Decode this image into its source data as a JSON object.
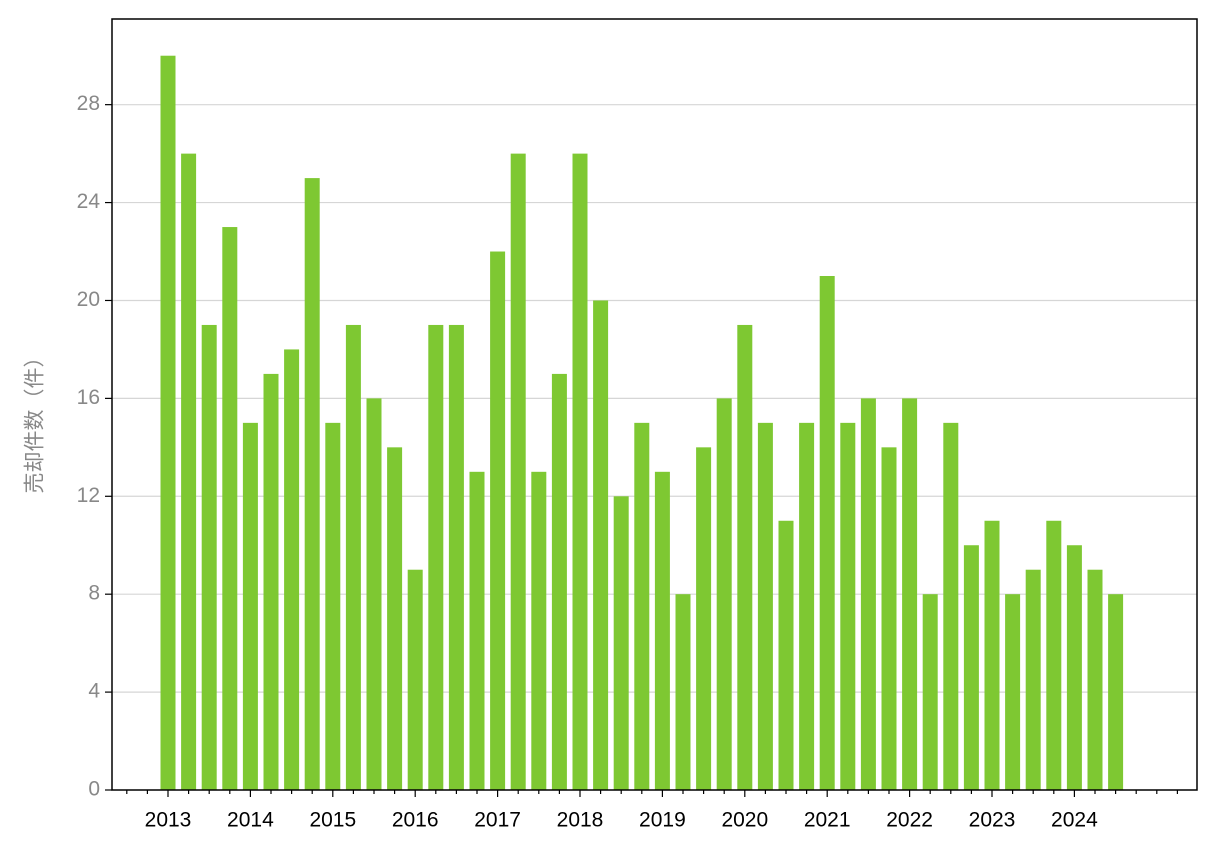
{
  "chart_data": {
    "type": "bar",
    "y_label": "売却件数（件）",
    "categories": [
      "2013",
      null,
      null,
      null,
      "2014",
      null,
      null,
      null,
      "2015",
      null,
      null,
      null,
      "2016",
      null,
      null,
      null,
      "2017",
      null,
      null,
      null,
      "2018",
      null,
      null,
      null,
      "2019",
      null,
      null,
      null,
      "2020",
      null,
      null,
      null,
      "2021",
      null,
      null,
      null,
      "2022",
      null,
      null,
      null,
      "2023",
      null,
      null,
      null,
      "2024",
      null,
      null
    ],
    "values": [
      30,
      26,
      19,
      23,
      15,
      17,
      18,
      25,
      15,
      19,
      16,
      14,
      9,
      19,
      19,
      13,
      22,
      26,
      13,
      17,
      26,
      20,
      12,
      15,
      13,
      8,
      14,
      16,
      19,
      15,
      11,
      15,
      21,
      15,
      16,
      14,
      16,
      8,
      15,
      10,
      11,
      8,
      9,
      11,
      10,
      9,
      8
    ],
    "color": "#7ec832",
    "ylim": [
      0,
      31.5
    ],
    "yticks": [
      0,
      4,
      8,
      12,
      16,
      20,
      24,
      28
    ],
    "grid": true
  }
}
